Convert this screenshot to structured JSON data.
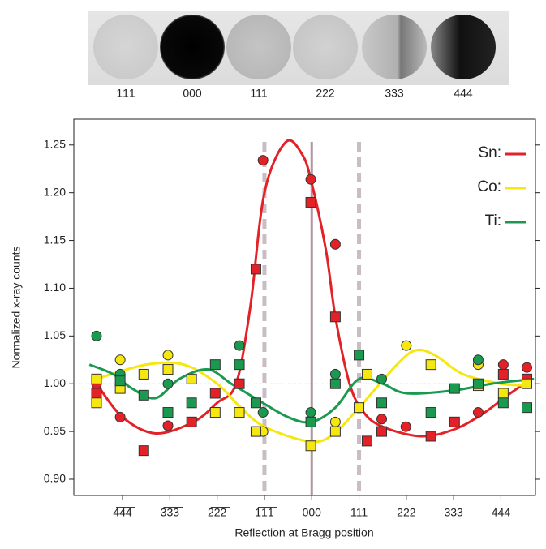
{
  "image_strip": {
    "labels": [
      "1̅1̅1̅",
      "000",
      "111",
      "222",
      "333",
      "444"
    ]
  },
  "chart_data": {
    "type": "scatter",
    "y_label": "Normalized x-ray counts",
    "x_label": "Reflection at Bragg position",
    "xlim": [
      -5.03,
      4.73
    ],
    "ylim": [
      0.883,
      1.277
    ],
    "xticks": [
      {
        "value": -4,
        "label": "4̅4̅4̅"
      },
      {
        "value": -3,
        "label": "3̅3̅3̅"
      },
      {
        "value": -2,
        "label": "2̅2̅2̅"
      },
      {
        "value": -1,
        "label": "1̅1̅1̅"
      },
      {
        "value": 0,
        "label": "000"
      },
      {
        "value": 1,
        "label": "111"
      },
      {
        "value": 2,
        "label": "222"
      },
      {
        "value": 3,
        "label": "333"
      },
      {
        "value": 4,
        "label": "444"
      }
    ],
    "yticks": [
      {
        "value": 0.9,
        "label": "0.90"
      },
      {
        "value": 0.95,
        "label": "0.95"
      },
      {
        "value": 1.0,
        "label": "1.00"
      },
      {
        "value": 1.05,
        "label": "1.05"
      },
      {
        "value": 1.1,
        "label": "1.10"
      },
      {
        "value": 1.15,
        "label": "1.15"
      },
      {
        "value": 1.2,
        "label": "1.20"
      },
      {
        "value": 1.25,
        "label": "1.25"
      }
    ],
    "vlines": [
      {
        "value": -1,
        "style": "dashed",
        "color": "#c9bcc3"
      },
      {
        "value": 0,
        "style": "solid",
        "color": "#b3959f"
      },
      {
        "value": 1,
        "style": "dashed",
        "color": "#c9bcc3"
      }
    ],
    "hline": 1.0,
    "legend_position": "upper right",
    "series": [
      {
        "name": "Sn:",
        "mode": "line",
        "color": "#e32228",
        "x": [
          -4.55,
          -4,
          -3.3,
          -2.5,
          -2,
          -1.6,
          -1.3,
          -1,
          -0.55,
          -0.2,
          0,
          0.3,
          0.5,
          0.8,
          1.1,
          1.5,
          2.3,
          3,
          3.6,
          4.2,
          4.65
        ],
        "values": [
          1.0,
          0.965,
          0.948,
          0.96,
          0.98,
          1.0,
          1.08,
          1.2,
          1.253,
          1.24,
          1.21,
          1.14,
          1.07,
          1.0,
          0.97,
          0.955,
          0.945,
          0.952,
          0.968,
          0.99,
          1.005
        ]
      },
      {
        "name": "Co:",
        "mode": "line",
        "color": "#f5e70f",
        "x": [
          -4.55,
          -3.5,
          -2.7,
          -2,
          -1.5,
          -1,
          -0.1,
          0.4,
          1,
          1.8,
          2.2,
          2.6,
          3.2,
          4,
          4.65
        ],
        "values": [
          1.005,
          1.02,
          1.02,
          1.0,
          0.975,
          0.955,
          0.94,
          0.945,
          0.975,
          1.02,
          1.035,
          1.03,
          1.01,
          1.0,
          0.998
        ]
      },
      {
        "name": "Ti:",
        "mode": "line",
        "color": "#1a9a4f",
        "x": [
          -4.7,
          -4.2,
          -3.8,
          -3.3,
          -2.8,
          -2.2,
          -1.7,
          -1.2,
          -0.5,
          0,
          0.5,
          1,
          1.5,
          2,
          3,
          3.8,
          4.7
        ],
        "values": [
          1.02,
          1.01,
          0.995,
          0.985,
          1.005,
          1.015,
          1.0,
          0.985,
          0.965,
          0.96,
          0.975,
          1.005,
          1.0,
          0.99,
          0.993,
          1.0,
          1.005
        ]
      },
      {
        "mode": "circle",
        "color": "#e32228",
        "x": [
          -4.55,
          -4.05,
          -3.04,
          -1.03,
          -0.02,
          0.5,
          1.48,
          1.99,
          3.52,
          4.05,
          4.55
        ],
        "values": [
          1.0,
          0.965,
          0.956,
          1.234,
          1.214,
          1.146,
          0.963,
          0.955,
          0.97,
          1.02,
          1.017
        ]
      },
      {
        "mode": "square",
        "color": "#e32228",
        "x": [
          -4.55,
          -3.55,
          -2.54,
          -2.04,
          -1.53,
          -1.18,
          -0.02,
          0.5,
          1.17,
          1.48,
          2.52,
          3.02,
          4.05,
          4.55
        ],
        "values": [
          0.99,
          0.93,
          0.96,
          0.99,
          1.0,
          1.12,
          1.19,
          1.07,
          0.94,
          0.95,
          0.945,
          0.96,
          1.01,
          1.005
        ]
      },
      {
        "mode": "circle",
        "color": "#f5e70f",
        "x": [
          -4.05,
          -3.04,
          -1.03,
          0.5,
          2.0,
          3.52
        ],
        "values": [
          1.025,
          1.03,
          0.95,
          0.96,
          1.04,
          1.02
        ]
      },
      {
        "mode": "square",
        "color": "#f5e70f",
        "x": [
          -4.55,
          -4.55,
          -4.05,
          -3.55,
          -3.04,
          -2.54,
          -2.04,
          -1.53,
          -1.18,
          -0.02,
          0.5,
          1.0,
          1.17,
          2.52,
          3.52,
          4.05,
          4.55
        ],
        "values": [
          0.98,
          1.005,
          0.995,
          1.01,
          1.015,
          1.005,
          0.97,
          0.97,
          0.95,
          0.935,
          0.95,
          0.975,
          1.01,
          1.02,
          0.998,
          0.99,
          1.0
        ]
      },
      {
        "mode": "circle",
        "color": "#1a9a4f",
        "x": [
          -4.55,
          -4.05,
          -3.04,
          -1.53,
          -1.03,
          -0.02,
          0.5,
          1.48,
          3.52
        ],
        "values": [
          1.05,
          1.01,
          1.0,
          1.04,
          0.97,
          0.97,
          1.01,
          1.005,
          1.025
        ]
      },
      {
        "mode": "square",
        "color": "#1a9a4f",
        "x": [
          -4.05,
          -3.55,
          -3.04,
          -2.54,
          -2.04,
          -1.53,
          -1.18,
          -0.02,
          0.5,
          1.0,
          1.48,
          2.52,
          3.02,
          3.52,
          4.05,
          4.55
        ],
        "values": [
          1.003,
          0.988,
          0.97,
          0.98,
          1.02,
          1.02,
          0.98,
          0.96,
          1.0,
          1.03,
          0.98,
          0.97,
          0.995,
          1.0,
          0.98,
          0.975
        ]
      }
    ]
  }
}
